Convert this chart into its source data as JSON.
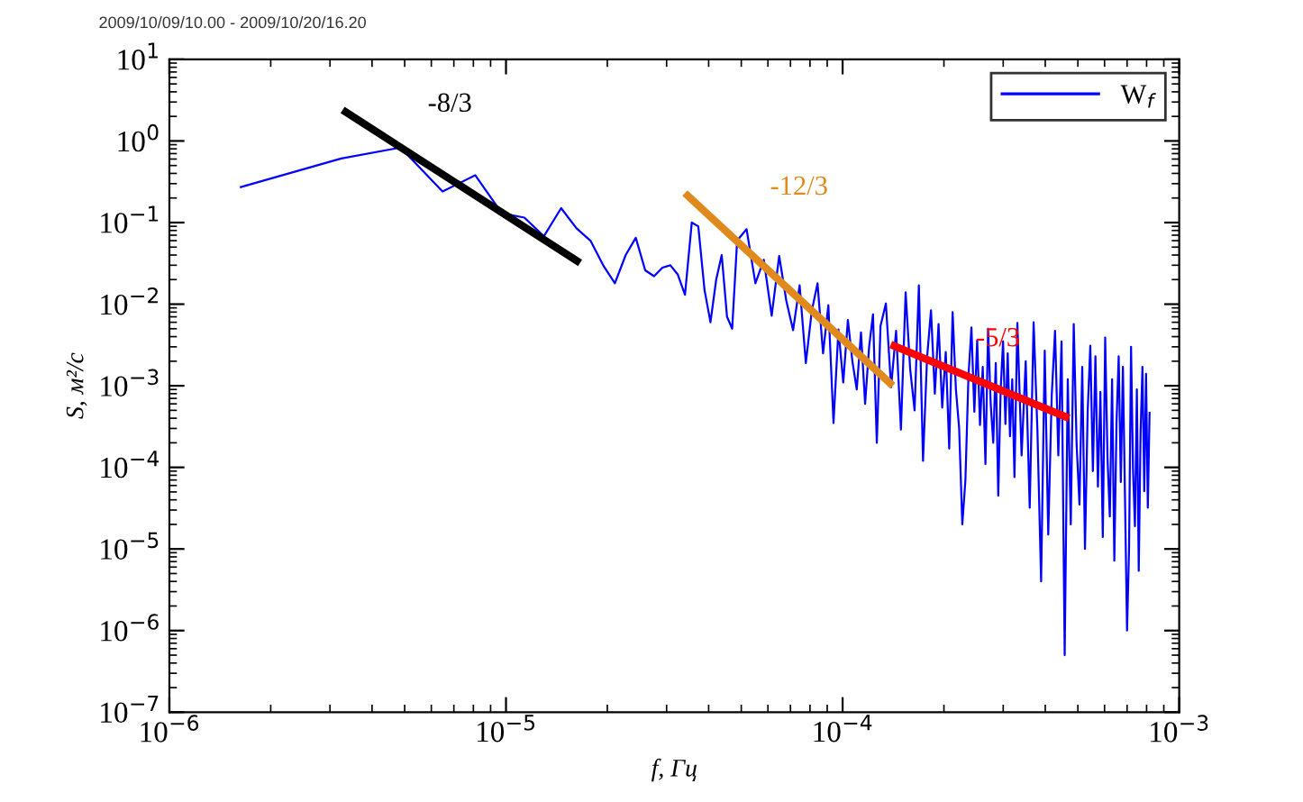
{
  "chart_data": {
    "type": "line",
    "title": "2009/10/09/10.00 - 2009/10/20/16.20",
    "xlabel": "f, Гц",
    "ylabel": "S, м²/с",
    "log": "xy",
    "legend": "top right",
    "grid": false,
    "xlim": [
      1e-06,
      0.001
    ],
    "ylim": [
      1e-07,
      10
    ],
    "xticks": [
      {
        "value": 1e-06,
        "label": "10$^{−6}$"
      },
      {
        "value": 1e-05,
        "label": "10$^{−5}$"
      },
      {
        "value": 0.0001,
        "label": "10$^{−4}$"
      },
      {
        "value": 0.001,
        "label": "10$^{−3}$"
      }
    ],
    "yticks": [
      {
        "value": 1e-07,
        "label": "10$^{−7}$"
      },
      {
        "value": 1e-06,
        "label": "10$^{−6}$"
      },
      {
        "value": 1e-05,
        "label": "10$^{−5}$"
      },
      {
        "value": 0.0001,
        "label": "10$^{−4}$"
      },
      {
        "value": 0.001,
        "label": "10$^{−3}$"
      },
      {
        "value": 0.01,
        "label": "10$^{−2}$"
      },
      {
        "value": 0.1,
        "label": "10$^{−1}$"
      },
      {
        "value": 1,
        "label": "10$^{0}$"
      },
      {
        "value": 10,
        "label": "10$^{1}$"
      }
    ],
    "series": [
      {
        "name": "W$_{f}$",
        "color": "#0000ff",
        "x": [
          1.62e-06,
          3.24e-06,
          4.86e-06,
          6.48e-06,
          8.1e-06,
          9.72e-06,
          1.134e-05,
          1.296e-05,
          1.458e-05,
          1.62e-05,
          1.782e-05,
          1.944e-05,
          2.106e-05,
          2.268e-05,
          2.43e-05,
          2.592e-05,
          2.754e-05,
          2.916e-05,
          3.078e-05,
          3.24e-05,
          3.402e-05,
          3.564e-05,
          3.726e-05,
          3.888e-05,
          4.05e-05,
          4.212e-05,
          4.374e-05,
          4.536e-05,
          4.698e-05,
          4.86e-05,
          5.184e-05,
          5.508e-05,
          5.832e-05,
          6.156e-05,
          6.48e-05,
          6.804e-05,
          7.128e-05,
          7.452e-05,
          7.776e-05,
          8.1e-05,
          8.424e-05,
          8.748e-05,
          9.072e-05,
          9.396e-05,
          9.72e-05,
          0.00010044,
          0.00010368,
          0.00010692,
          0.00011016,
          0.0001134,
          0.00011664,
          0.00011988,
          0.00012312,
          0.00012636,
          0.0001296,
          0.00013446,
          0.00013932,
          0.00014418,
          0.00014904,
          0.0001539,
          0.00015876,
          0.00016362,
          0.00016848,
          0.00017334,
          0.0001782,
          0.00018306,
          0.00018792,
          0.00019278,
          0.00019764,
          0.0002025,
          0.00020736,
          0.00021222,
          0.00021708,
          0.00022194,
          0.0002268,
          0.00023166,
          0.00023652,
          0.00024138,
          0.00024624,
          0.0002511,
          0.00025596,
          0.00026082,
          0.00026568,
          0.00027054,
          0.0002754,
          0.00028026,
          0.00028512,
          0.00028998,
          0.00029484,
          0.0002997,
          0.00030456,
          0.00030942,
          0.00031428,
          0.00031914,
          0.000324,
          0.00033048,
          0.0003402,
          0.00034992,
          0.00035964,
          0.00036936,
          0.00037908,
          0.0003888,
          0.00039852,
          0.00040824,
          0.00041796,
          0.00042768,
          0.0004374,
          0.00044712,
          0.00045684,
          0.00046656,
          0.00047628,
          0.000486,
          0.00049572,
          0.00050544,
          0.00051516,
          0.00052488,
          0.0005346,
          0.00054432,
          0.00055404,
          0.00056376,
          0.00057348,
          0.0005832,
          0.00059292,
          0.00060264,
          0.00061236,
          0.00062208,
          0.0006318,
          0.00064152,
          0.00065124,
          0.00066096,
          0.00067068,
          0.0006804,
          0.00069012,
          0.00069984,
          0.00070956,
          0.00071928,
          0.000729,
          0.00073872,
          0.00074844,
          0.00075816,
          0.00076788,
          0.0007776,
          0.00078732,
          0.00079704,
          0.00080676,
          0.00081648
        ],
        "values": [
          0.27,
          0.61,
          0.83,
          0.24,
          0.38,
          0.13,
          0.115,
          0.068,
          0.15,
          0.085,
          0.06,
          0.03,
          0.018,
          0.04,
          0.065,
          0.026,
          0.022,
          0.028,
          0.03,
          0.023,
          0.013,
          0.1,
          0.09,
          0.015,
          0.006,
          0.02,
          0.04,
          0.007,
          0.005,
          0.06,
          0.083,
          0.018,
          0.035,
          0.0072,
          0.039,
          0.011,
          0.0048,
          0.017,
          0.0019,
          0.0083,
          0.018,
          0.0025,
          0.0097,
          0.00035,
          0.0049,
          0.0011,
          0.0064,
          0.002,
          0.0009,
          0.0045,
          0.0006,
          0.003,
          0.0075,
          0.0002,
          0.0054,
          0.0102,
          0.00096,
          0.0047,
          0.00029,
          0.014,
          0.0016,
          0.0005,
          0.017,
          0.00012,
          0.0022,
          0.0084,
          0.0008,
          0.0057,
          0.00054,
          0.0026,
          0.00017,
          0.008,
          0.0009,
          0.0003,
          2e-05,
          7e-05,
          0.0013,
          0.0052,
          0.00048,
          0.0036,
          0.00033,
          0.0017,
          0.00011,
          0.005,
          0.0006,
          0.0002,
          0.0019,
          4.5e-05,
          0.0009,
          0.0035,
          0.00034,
          0.0025,
          0.00024,
          0.0012,
          7.6e-05,
          0.0059,
          0.00014,
          0.002,
          3.2e-05,
          0.006,
          0.00029,
          4e-06,
          0.0027,
          1.5e-05,
          0.00074,
          0.0047,
          0.00014,
          0.0035,
          5e-07,
          0.0012,
          2e-05,
          0.0057,
          0.00019,
          3.5e-05,
          0.0017,
          1e-05,
          0.00048,
          0.0031,
          9e-05,
          0.0023,
          5.8e-05,
          0.00084,
          1.4e-05,
          0.0039,
          0.00013,
          2.5e-05,
          0.0012,
          7.2e-06,
          0.00035,
          0.0023,
          6.6e-05,
          0.0017,
          4.2e-05,
          1e-06,
          1e-05,
          0.003,
          9.5e-05,
          1.9e-05,
          0.0009,
          5.4e-06,
          0.00027,
          0.0017,
          5.1e-05,
          0.0014,
          3.2e-05,
          0.00048
        ]
      },
      {
        "color": "#000000",
        "x": [
          3.27e-06,
          1.66e-05
        ],
        "values": [
          2.4,
          0.032
        ]
      },
      {
        "color": "#e08a1e",
        "x": [
          3.4e-05,
          0.000141
        ],
        "values": [
          0.23,
          0.001
        ]
      },
      {
        "color": "#ff0000",
        "x": [
          0.000139,
          0.000471
        ],
        "values": [
          0.0032,
          0.0004
        ]
      }
    ],
    "annotations": [
      "-8/3",
      "-12/3",
      "-5/3"
    ]
  }
}
